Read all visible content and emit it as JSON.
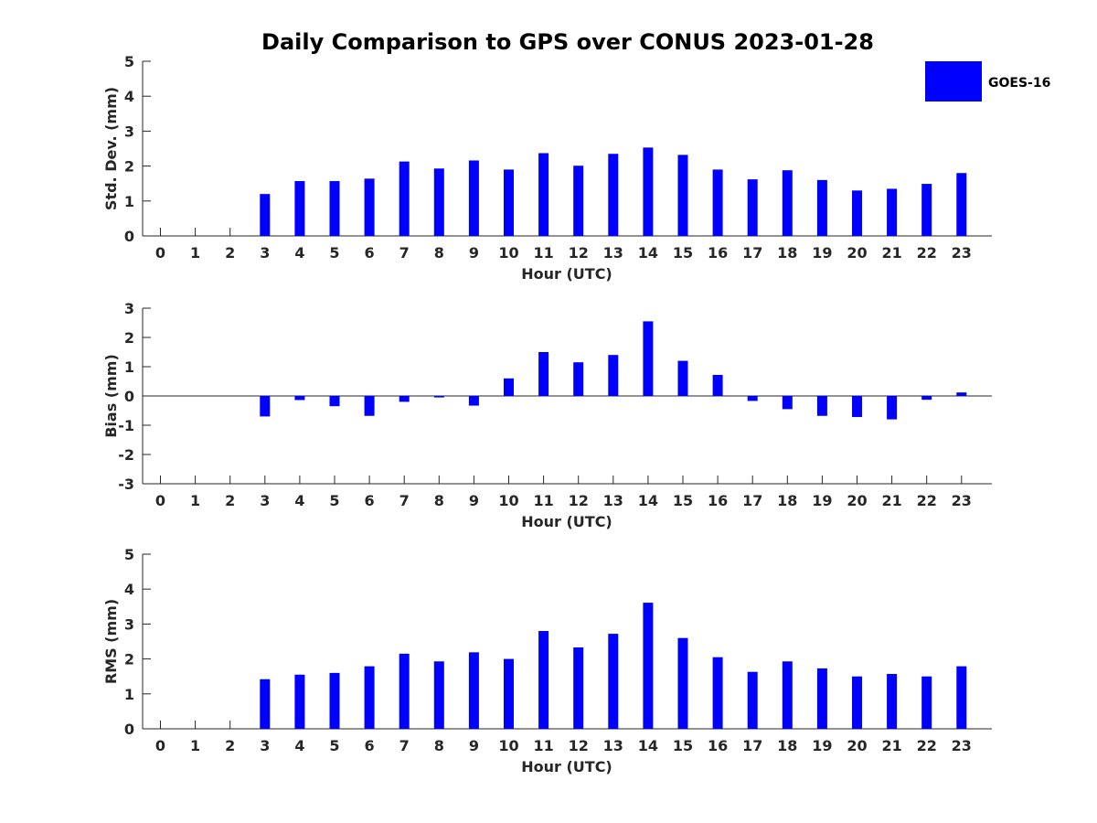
{
  "title": "Daily Comparison to GPS over CONUS 2023-01-28",
  "legend": {
    "label": "GOES-16",
    "color": "#0000ff",
    "placement": "top-right"
  },
  "bar_color": "#0000ff",
  "chart_data": [
    {
      "type": "bar",
      "xlabel": "Hour (UTC)",
      "ylabel": "Std. Dev. (mm)",
      "ylim": [
        0,
        5
      ],
      "yticks": [
        0,
        1,
        2,
        3,
        4,
        5
      ],
      "categories": [
        "0",
        "1",
        "2",
        "3",
        "4",
        "5",
        "6",
        "7",
        "8",
        "9",
        "10",
        "11",
        "12",
        "13",
        "14",
        "15",
        "16",
        "17",
        "18",
        "19",
        "20",
        "21",
        "22",
        "23"
      ],
      "series": [
        {
          "name": "GOES-16",
          "values": [
            null,
            null,
            null,
            1.2,
            1.57,
            1.57,
            1.64,
            2.13,
            1.93,
            2.16,
            1.9,
            2.37,
            2.01,
            2.35,
            2.53,
            2.32,
            1.9,
            1.62,
            1.88,
            1.6,
            1.3,
            1.35,
            1.49,
            1.8
          ]
        }
      ],
      "grid": false
    },
    {
      "type": "bar",
      "xlabel": "Hour (UTC)",
      "ylabel": "Bias (mm)",
      "ylim": [
        -3,
        3
      ],
      "yticks": [
        -3,
        -2,
        -1,
        0,
        1,
        2,
        3
      ],
      "categories": [
        "0",
        "1",
        "2",
        "3",
        "4",
        "5",
        "6",
        "7",
        "8",
        "9",
        "10",
        "11",
        "12",
        "13",
        "14",
        "15",
        "16",
        "17",
        "18",
        "19",
        "20",
        "21",
        "22",
        "23"
      ],
      "series": [
        {
          "name": "GOES-16",
          "values": [
            null,
            null,
            null,
            -0.7,
            -0.14,
            -0.35,
            -0.68,
            -0.2,
            -0.05,
            -0.33,
            0.6,
            1.5,
            1.15,
            1.4,
            2.55,
            1.2,
            0.72,
            -0.17,
            -0.45,
            -0.68,
            -0.72,
            -0.8,
            -0.13,
            0.12
          ]
        }
      ],
      "grid": false
    },
    {
      "type": "bar",
      "xlabel": "Hour (UTC)",
      "ylabel": "RMS (mm)",
      "ylim": [
        0,
        5
      ],
      "yticks": [
        0,
        1,
        2,
        3,
        4,
        5
      ],
      "categories": [
        "0",
        "1",
        "2",
        "3",
        "4",
        "5",
        "6",
        "7",
        "8",
        "9",
        "10",
        "11",
        "12",
        "13",
        "14",
        "15",
        "16",
        "17",
        "18",
        "19",
        "20",
        "21",
        "22",
        "23"
      ],
      "series": [
        {
          "name": "GOES-16",
          "values": [
            null,
            null,
            null,
            1.42,
            1.55,
            1.6,
            1.79,
            2.15,
            1.93,
            2.19,
            2.0,
            2.8,
            2.33,
            2.72,
            3.61,
            2.6,
            2.05,
            1.63,
            1.93,
            1.73,
            1.5,
            1.57,
            1.5,
            1.79
          ]
        }
      ],
      "grid": false
    }
  ]
}
